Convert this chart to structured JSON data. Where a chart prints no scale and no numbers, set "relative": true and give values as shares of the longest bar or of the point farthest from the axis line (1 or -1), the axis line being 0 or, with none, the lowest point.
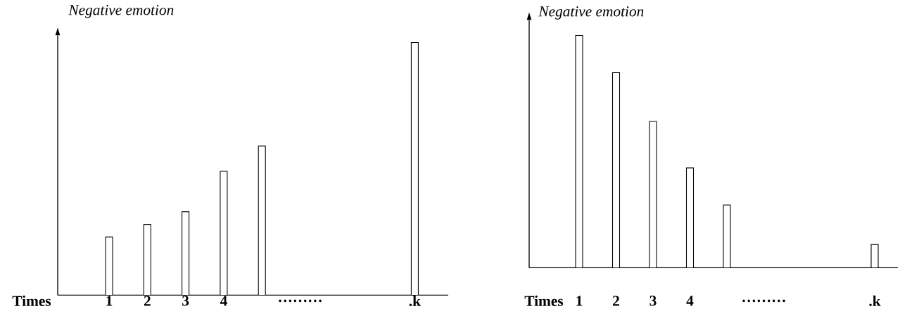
{
  "chart_data": [
    {
      "type": "bar",
      "relative": true,
      "xlabel": "Times",
      "ylabel": "Negative emotion",
      "color": "#ffffff",
      "categories": [
        "1",
        "2",
        "3",
        "4",
        null,
        "………",
        null,
        null,
        ".k"
      ],
      "values": [
        0.23,
        0.28,
        0.33,
        0.49,
        0.59,
        null,
        null,
        null,
        1
      ]
    },
    {
      "type": "bar",
      "relative": true,
      "xlabel": "Times",
      "ylabel": "Negative emotion",
      "color": "#ffffff",
      "categories": [
        "1",
        "2",
        "3",
        "4",
        null,
        "………",
        null,
        null,
        ".k"
      ],
      "values": [
        1,
        0.84,
        0.63,
        0.43,
        0.27,
        null,
        null,
        null,
        0.1
      ]
    }
  ]
}
